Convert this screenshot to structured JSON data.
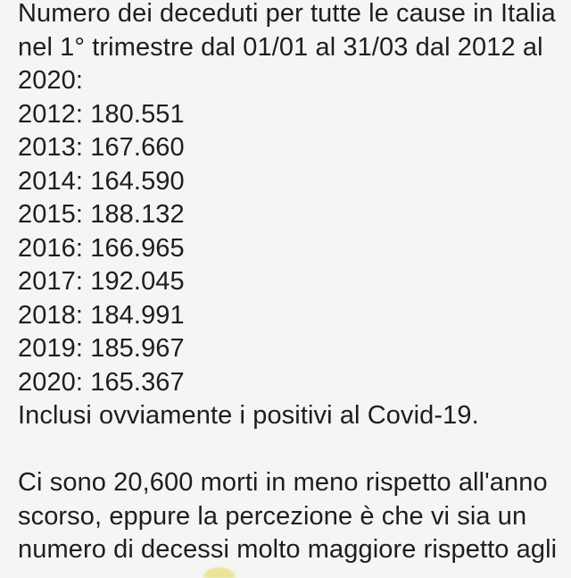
{
  "colors": {
    "background": "#f5f5f4",
    "text": "#1e1e1e",
    "partial_emoji_yellow": "#e8e286"
  },
  "post": {
    "intro_lines": [
      "Numero dei deceduti per tutte le cause in Italia",
      "nel 1° trimestre dal 01/01 al 31/03 dal 2012 al",
      "2020:"
    ],
    "stats_separator": ": ",
    "stats": [
      {
        "year": "2012",
        "deaths": "180.551"
      },
      {
        "year": "2013",
        "deaths": "167.660"
      },
      {
        "year": "2014",
        "deaths": "164.590"
      },
      {
        "year": "2015",
        "deaths": "188.132"
      },
      {
        "year": "2016",
        "deaths": "166.965"
      },
      {
        "year": "2017",
        "deaths": "192.045"
      },
      {
        "year": "2018",
        "deaths": "184.991"
      },
      {
        "year": "2019",
        "deaths": "185.967"
      },
      {
        "year": "2020",
        "deaths": "165.367"
      }
    ],
    "note": "Inclusi ovviamente i positivi al Covid-19.",
    "paragraph_lines": [
      "Ci sono 20,600 morti in meno rispetto all'anno",
      "scorso, eppure la percezione è che vi sia un",
      "numero di decessi molto maggiore rispetto agli"
    ],
    "partial_emoji": {
      "description": "top edge of a yellow emoji from the cut-off next line",
      "color": "#e8e286"
    }
  }
}
